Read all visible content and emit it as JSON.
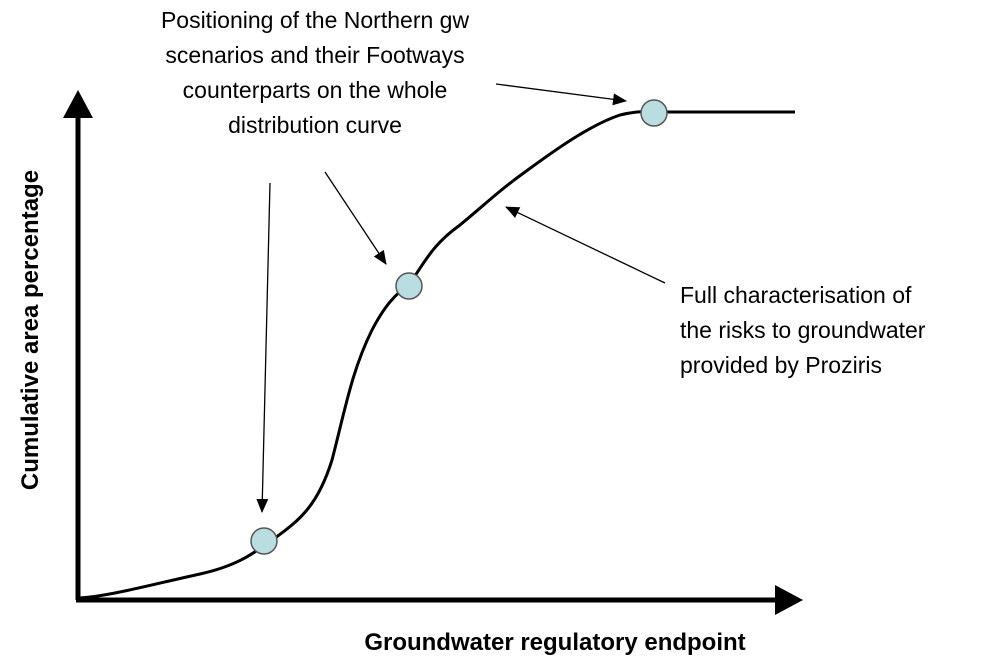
{
  "annotations": [
    {
      "lines": [
        "Positioning of the Northern gw",
        "scenarios and their Footways",
        "counterparts on the whole",
        "distribution curve"
      ]
    },
    {
      "lines": [
        "Full characterisation of",
        "the risks to groundwater",
        "provided by Proziris"
      ]
    }
  ],
  "axes": {
    "x_label": "Groundwater regulatory endpoint",
    "y_label": "Cumulative area percentage"
  }
}
